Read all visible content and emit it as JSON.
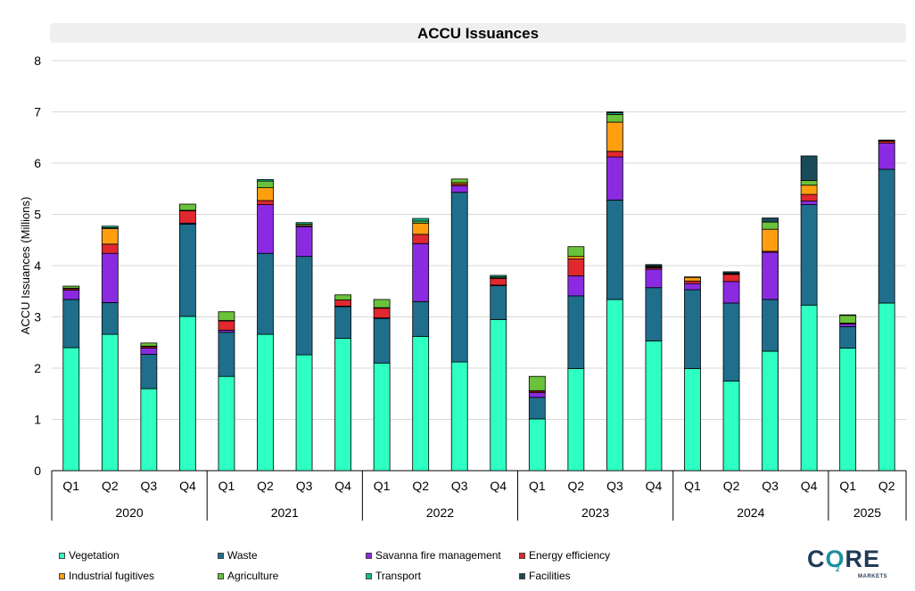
{
  "chart_data": {
    "type": "bar",
    "stacked": true,
    "title": "ACCU Issuances",
    "ylabel": "ACCU Issuances (Millions)",
    "xlabel": "",
    "ylim": [
      0,
      8
    ],
    "yticks": [
      0,
      1,
      2,
      3,
      4,
      5,
      6,
      7,
      8
    ],
    "grid": true,
    "legend_position": "bottom",
    "categories": [
      "Q1",
      "Q2",
      "Q3",
      "Q4",
      "Q1",
      "Q2",
      "Q3",
      "Q4",
      "Q1",
      "Q2",
      "Q3",
      "Q4",
      "Q1",
      "Q2",
      "Q3",
      "Q4",
      "Q1",
      "Q2",
      "Q3",
      "Q4",
      "Q1",
      "Q2"
    ],
    "groups": [
      {
        "label": "2020",
        "count": 4
      },
      {
        "label": "2021",
        "count": 4
      },
      {
        "label": "2022",
        "count": 4
      },
      {
        "label": "2023",
        "count": 4
      },
      {
        "label": "2024",
        "count": 4
      },
      {
        "label": "2025",
        "count": 2
      }
    ],
    "series": [
      {
        "name": "Vegetation",
        "color": "#2effc3",
        "values": [
          2.4,
          2.66,
          1.6,
          3.01,
          1.84,
          2.66,
          2.26,
          2.58,
          2.1,
          2.62,
          2.12,
          2.95,
          1.01,
          1.99,
          3.34,
          2.53,
          1.99,
          1.75,
          2.33,
          3.23,
          2.39,
          3.27
        ]
      },
      {
        "name": "Waste",
        "color": "#1f6e8c",
        "values": [
          0.94,
          0.62,
          0.67,
          1.8,
          0.86,
          1.58,
          1.92,
          0.62,
          0.87,
          0.68,
          3.31,
          0.66,
          0.42,
          1.42,
          1.94,
          1.04,
          1.54,
          1.52,
          1.01,
          1.96,
          0.42,
          2.61
        ]
      },
      {
        "name": "Savanna fire management",
        "color": "#8a2be2",
        "values": [
          0.18,
          0.96,
          0.12,
          0.02,
          0.04,
          0.95,
          0.58,
          0.01,
          0.01,
          1.13,
          0.13,
          0.01,
          0.09,
          0.39,
          0.84,
          0.36,
          0.12,
          0.42,
          0.92,
          0.07,
          0.05,
          0.51
        ]
      },
      {
        "name": "Energy efficiency",
        "color": "#e0282e",
        "values": [
          0.03,
          0.18,
          0.03,
          0.24,
          0.18,
          0.08,
          0.02,
          0.12,
          0.19,
          0.18,
          0.03,
          0.13,
          0.03,
          0.33,
          0.11,
          0.03,
          0.05,
          0.14,
          0.02,
          0.13,
          0.02,
          0.04
        ]
      },
      {
        "name": "Industrial fugitives",
        "color": "#ff9f10",
        "values": [
          0.01,
          0.3,
          0.01,
          0.01,
          0.01,
          0.25,
          0.0,
          0.0,
          0.01,
          0.22,
          0.03,
          0.01,
          0.01,
          0.05,
          0.57,
          0.01,
          0.07,
          0.01,
          0.43,
          0.18,
          0.0,
          0.01
        ]
      },
      {
        "name": "Agriculture",
        "color": "#6ac23a",
        "values": [
          0.04,
          0.02,
          0.06,
          0.12,
          0.17,
          0.13,
          0.03,
          0.1,
          0.16,
          0.04,
          0.07,
          0.02,
          0.28,
          0.19,
          0.15,
          0.01,
          0.01,
          0.01,
          0.14,
          0.09,
          0.15,
          0.01
        ]
      },
      {
        "name": "Transport",
        "color": "#10c090",
        "values": [
          0.0,
          0.03,
          0.0,
          0.0,
          0.0,
          0.03,
          0.03,
          0.0,
          0.0,
          0.05,
          0.0,
          0.03,
          0.0,
          0.0,
          0.03,
          0.02,
          0.0,
          0.0,
          0.0,
          0.0,
          0.01,
          0.0
        ]
      },
      {
        "name": "Facilities",
        "color": "#1a4a5a",
        "values": [
          0.0,
          0.0,
          0.0,
          0.0,
          0.0,
          0.0,
          0.0,
          0.0,
          0.0,
          0.0,
          0.0,
          0.0,
          0.0,
          0.0,
          0.02,
          0.02,
          0.0,
          0.03,
          0.08,
          0.48,
          0.0,
          0.0
        ]
      }
    ]
  },
  "logo": {
    "text_c": "C",
    "text_o": "O",
    "text_re": "RE",
    "subscript": "2",
    "subtitle": "MARKETS"
  }
}
